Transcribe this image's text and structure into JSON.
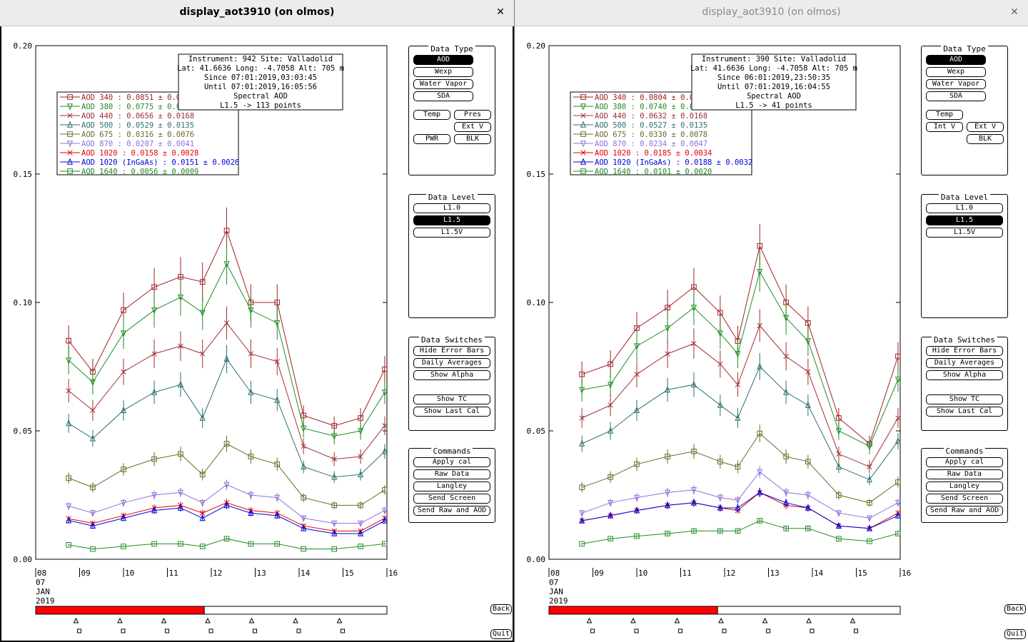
{
  "windows": [
    {
      "title": "display_aot3910 (on olmos)",
      "info": [
        "Instrument: 942 Site: Valladolid",
        "Lat: 41.6636 Long: -4.7058 Alt: 705 m",
        "Since 07:01:2019,03:03:45",
        "Until 07:01:2019,16:05:56",
        "Spectral AOD",
        "L1.5 -> 113 points"
      ],
      "legend": [
        {
          "label": "AOD 340  : 0.0851 ± 0.0",
          "color": "#a02020",
          "marker": "square"
        },
        {
          "label": "AOD 380  : 0.0775 ± 0.0",
          "color": "#228b22",
          "marker": "tri-down"
        },
        {
          "label": "AOD 440  : 0.0656 ± 0.0168",
          "color": "#a03030",
          "marker": "x"
        },
        {
          "label": "AOD 500  : 0.0529 ± 0.0135",
          "color": "#2f6f6f",
          "marker": "tri-up"
        },
        {
          "label": "AOD 675  : 0.0316 ± 0.0076",
          "color": "#6b6b2a",
          "marker": "square"
        },
        {
          "label": "AOD 870  : 0.0207 ± 0.0041",
          "color": "#9370db",
          "marker": "tri-down"
        },
        {
          "label": "AOD 1020  : 0.0158 ± 0.0028",
          "color": "#e00000",
          "marker": "x"
        },
        {
          "label": "AOD 1020 (InGaAs)  : 0.0151 ± 0.0026",
          "color": "#0000dd",
          "marker": "tri-up"
        },
        {
          "label": "AOD 1640  : 0.0056 ± 0.0009",
          "color": "#228b22",
          "marker": "square"
        }
      ],
      "data_type": {
        "title": "Data Type",
        "buttons": [
          "AOD",
          "Wexp",
          "Water Vapor",
          "SDA",
          "Temp",
          "Pres",
          "Ext V",
          "PWR",
          "BLK"
        ]
      },
      "data_level": {
        "title": "Data Level",
        "buttons": [
          "L1.0",
          "L1.5",
          "L1.5V"
        ]
      },
      "switches": {
        "title": "Data Switches",
        "buttons": [
          "Hide Error Bars",
          "Daily Averages",
          "Show Alpha",
          "Show TC",
          "Show Last Cal"
        ]
      },
      "commands": {
        "title": "Commands",
        "buttons": [
          "Apply cal",
          "Raw Data",
          "Langley",
          "Send Screen",
          "Send Raw and AOD"
        ]
      },
      "back": "Back",
      "quit": "Quit"
    },
    {
      "title": "display_aot3910 (on olmos)",
      "info": [
        "Instrument: 390 Site: Valladolid",
        "Lat: 41.6636 Long: -4.7058 Alt: 705 m",
        "Since 06:01:2019,23:50:35",
        "Until 07:01:2019,16:04:55",
        "Spectral AOD",
        "L1.5 -> 41 points"
      ],
      "legend": [
        {
          "label": "AOD 340  : 0.0804 ± 0.0",
          "color": "#a02020",
          "marker": "square"
        },
        {
          "label": "AOD 380  : 0.0740 ± 0.0",
          "color": "#228b22",
          "marker": "tri-down"
        },
        {
          "label": "AOD 440  : 0.0632 ± 0.0168",
          "color": "#a03030",
          "marker": "x"
        },
        {
          "label": "AOD 500  : 0.0527 ± 0.0135",
          "color": "#2f6f6f",
          "marker": "tri-up"
        },
        {
          "label": "AOD 675  : 0.0330 ± 0.0078",
          "color": "#6b6b2a",
          "marker": "square"
        },
        {
          "label": "AOD 870  : 0.0234 ± 0.0047",
          "color": "#9370db",
          "marker": "tri-down"
        },
        {
          "label": "AOD 1020  : 0.0185 ± 0.0034",
          "color": "#e00000",
          "marker": "x"
        },
        {
          "label": "AOD 1020 (InGaAs)  : 0.0188 ± 0.0032",
          "color": "#0000dd",
          "marker": "tri-up"
        },
        {
          "label": "AOD 1640  : 0.0101 ± 0.0020",
          "color": "#228b22",
          "marker": "square"
        }
      ],
      "data_type": {
        "title": "Data Type",
        "buttons": [
          "AOD",
          "Wexp",
          "Water Vapor",
          "SDA",
          "Temp",
          "Int V",
          "Ext V",
          "BLK"
        ]
      },
      "data_level": {
        "title": "Data Level",
        "buttons": [
          "L1.0",
          "L1.5",
          "L1.5V"
        ]
      },
      "switches": {
        "title": "Data Switches",
        "buttons": [
          "Hide Error Bars",
          "Daily Averages",
          "Show Alpha",
          "Show TC",
          "Show Last Cal"
        ]
      },
      "commands": {
        "title": "Commands",
        "buttons": [
          "Apply cal",
          "Raw Data",
          "Langley",
          "Send Screen",
          "Send Raw and AOD"
        ]
      },
      "back": "Back",
      "quit": "Quit"
    }
  ],
  "chart_data": [
    {
      "type": "line",
      "ylim": [
        0,
        0.2
      ],
      "yticks": [
        "0.00",
        "0.05",
        "0.10",
        "0.15",
        "0.20"
      ],
      "xlim": [
        8,
        16
      ],
      "xticks": [
        "08",
        "09",
        "10",
        "11",
        "12",
        "13",
        "14",
        "15",
        "16"
      ],
      "xsub": [
        "07",
        "JAN",
        "2019"
      ],
      "progress": 0.48,
      "series": [
        {
          "name": "AOD 340",
          "values": [
            0.0851,
            0.073,
            0.097,
            0.106,
            0.11,
            0.108,
            0.128,
            0.1,
            0.1,
            0.056,
            0.052,
            0.055,
            0.074
          ]
        },
        {
          "name": "AOD 380",
          "values": [
            0.0775,
            0.069,
            0.088,
            0.097,
            0.102,
            0.096,
            0.115,
            0.097,
            0.092,
            0.051,
            0.048,
            0.05,
            0.065
          ]
        },
        {
          "name": "AOD 440",
          "values": [
            0.0656,
            0.058,
            0.073,
            0.08,
            0.083,
            0.08,
            0.092,
            0.08,
            0.077,
            0.044,
            0.039,
            0.04,
            0.052
          ]
        },
        {
          "name": "AOD 500",
          "values": [
            0.0529,
            0.047,
            0.058,
            0.065,
            0.068,
            0.055,
            0.078,
            0.065,
            0.062,
            0.036,
            0.032,
            0.033,
            0.042
          ]
        },
        {
          "name": "AOD 675",
          "values": [
            0.0316,
            0.028,
            0.035,
            0.039,
            0.041,
            0.033,
            0.045,
            0.04,
            0.037,
            0.024,
            0.021,
            0.021,
            0.027
          ]
        },
        {
          "name": "AOD 870",
          "values": [
            0.0207,
            0.018,
            0.022,
            0.025,
            0.026,
            0.022,
            0.029,
            0.025,
            0.024,
            0.016,
            0.014,
            0.014,
            0.019
          ]
        },
        {
          "name": "AOD 1020",
          "values": [
            0.0158,
            0.014,
            0.017,
            0.02,
            0.021,
            0.018,
            0.022,
            0.019,
            0.018,
            0.013,
            0.011,
            0.011,
            0.016
          ]
        },
        {
          "name": "AOD 1020 (InGaAs)",
          "values": [
            0.0151,
            0.013,
            0.016,
            0.019,
            0.02,
            0.016,
            0.021,
            0.018,
            0.017,
            0.012,
            0.01,
            0.01,
            0.015
          ]
        },
        {
          "name": "AOD 1640",
          "values": [
            0.0056,
            0.004,
            0.005,
            0.006,
            0.006,
            0.005,
            0.008,
            0.006,
            0.006,
            0.004,
            0.004,
            0.005,
            0.006
          ]
        }
      ],
      "x": [
        8.75,
        9.3,
        10.0,
        10.7,
        11.3,
        11.8,
        12.35,
        12.9,
        13.5,
        14.1,
        14.8,
        15.4,
        15.95
      ]
    },
    {
      "type": "line",
      "ylim": [
        0,
        0.2
      ],
      "yticks": [
        "0.00",
        "0.05",
        "0.10",
        "0.15",
        "0.20"
      ],
      "xlim": [
        8,
        16
      ],
      "xticks": [
        "08",
        "09",
        "10",
        "11",
        "12",
        "13",
        "14",
        "15",
        "16"
      ],
      "xsub": [
        "07",
        "JAN",
        "2019"
      ],
      "progress": 0.48,
      "series": [
        {
          "name": "AOD 340",
          "values": [
            0.072,
            0.076,
            0.09,
            0.098,
            0.106,
            0.096,
            0.085,
            0.122,
            0.1,
            0.092,
            0.055,
            0.045,
            0.079
          ]
        },
        {
          "name": "AOD 380",
          "values": [
            0.066,
            0.068,
            0.083,
            0.09,
            0.098,
            0.088,
            0.08,
            0.112,
            0.094,
            0.085,
            0.05,
            0.044,
            0.07
          ]
        },
        {
          "name": "AOD 440",
          "values": [
            0.055,
            0.06,
            0.072,
            0.08,
            0.084,
            0.076,
            0.068,
            0.091,
            0.079,
            0.073,
            0.041,
            0.036,
            0.055
          ]
        },
        {
          "name": "AOD 500",
          "values": [
            0.045,
            0.05,
            0.058,
            0.066,
            0.068,
            0.06,
            0.055,
            0.075,
            0.065,
            0.06,
            0.036,
            0.031,
            0.046
          ]
        },
        {
          "name": "AOD 675",
          "values": [
            0.028,
            0.032,
            0.037,
            0.04,
            0.042,
            0.038,
            0.036,
            0.049,
            0.04,
            0.038,
            0.025,
            0.022,
            0.03
          ]
        },
        {
          "name": "AOD 870",
          "values": [
            0.018,
            0.022,
            0.024,
            0.026,
            0.027,
            0.024,
            0.023,
            0.034,
            0.026,
            0.025,
            0.018,
            0.016,
            0.022
          ]
        },
        {
          "name": "AOD 1020",
          "values": [
            0.015,
            0.017,
            0.019,
            0.021,
            0.022,
            0.02,
            0.019,
            0.026,
            0.021,
            0.02,
            0.013,
            0.012,
            0.018
          ]
        },
        {
          "name": "AOD 1020 (InGaAs)",
          "values": [
            0.015,
            0.017,
            0.019,
            0.021,
            0.022,
            0.02,
            0.02,
            0.026,
            0.022,
            0.02,
            0.013,
            0.012,
            0.017
          ]
        },
        {
          "name": "AOD 1640",
          "values": [
            0.006,
            0.008,
            0.009,
            0.01,
            0.011,
            0.011,
            0.011,
            0.015,
            0.012,
            0.012,
            0.008,
            0.007,
            0.01
          ]
        }
      ],
      "x": [
        8.75,
        9.4,
        10.0,
        10.7,
        11.3,
        11.9,
        12.3,
        12.8,
        13.4,
        13.9,
        14.6,
        15.3,
        15.95
      ]
    }
  ]
}
